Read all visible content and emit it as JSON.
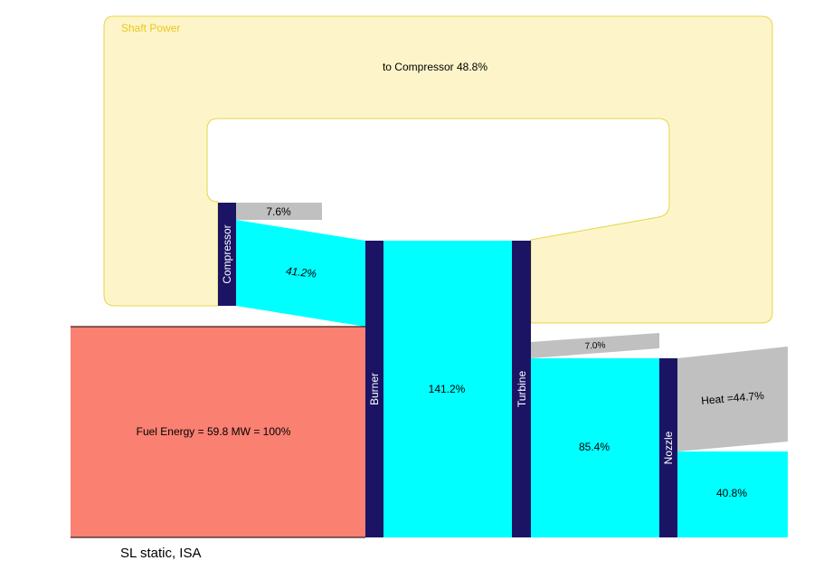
{
  "title": "Shaft Power",
  "footer": "SL static, ISA",
  "colors": {
    "shaft_fill": "#fdf5c9",
    "shaft_stroke": "#e8d44a",
    "air": "#00ffff",
    "fuel": "#fa8072",
    "loss": "#c0c0c0",
    "node": "#1b1464"
  },
  "nodes": {
    "compressor": "Compressor",
    "burner": "Burner",
    "turbine": "Turbine",
    "nozzle": "Nozzle"
  },
  "flows": {
    "to_compressor": "to Compressor 48.8%",
    "compressor_loss": "7.6%",
    "compressor_out": "41.2%",
    "fuel": "Fuel Energy = 59.8 MW = 100%",
    "burner_out": "141.2%",
    "turbine_loss": "7.0%",
    "turbine_out": "85.4%",
    "heat": "Heat =44.7%",
    "nozzle_out": "40.8%"
  }
}
